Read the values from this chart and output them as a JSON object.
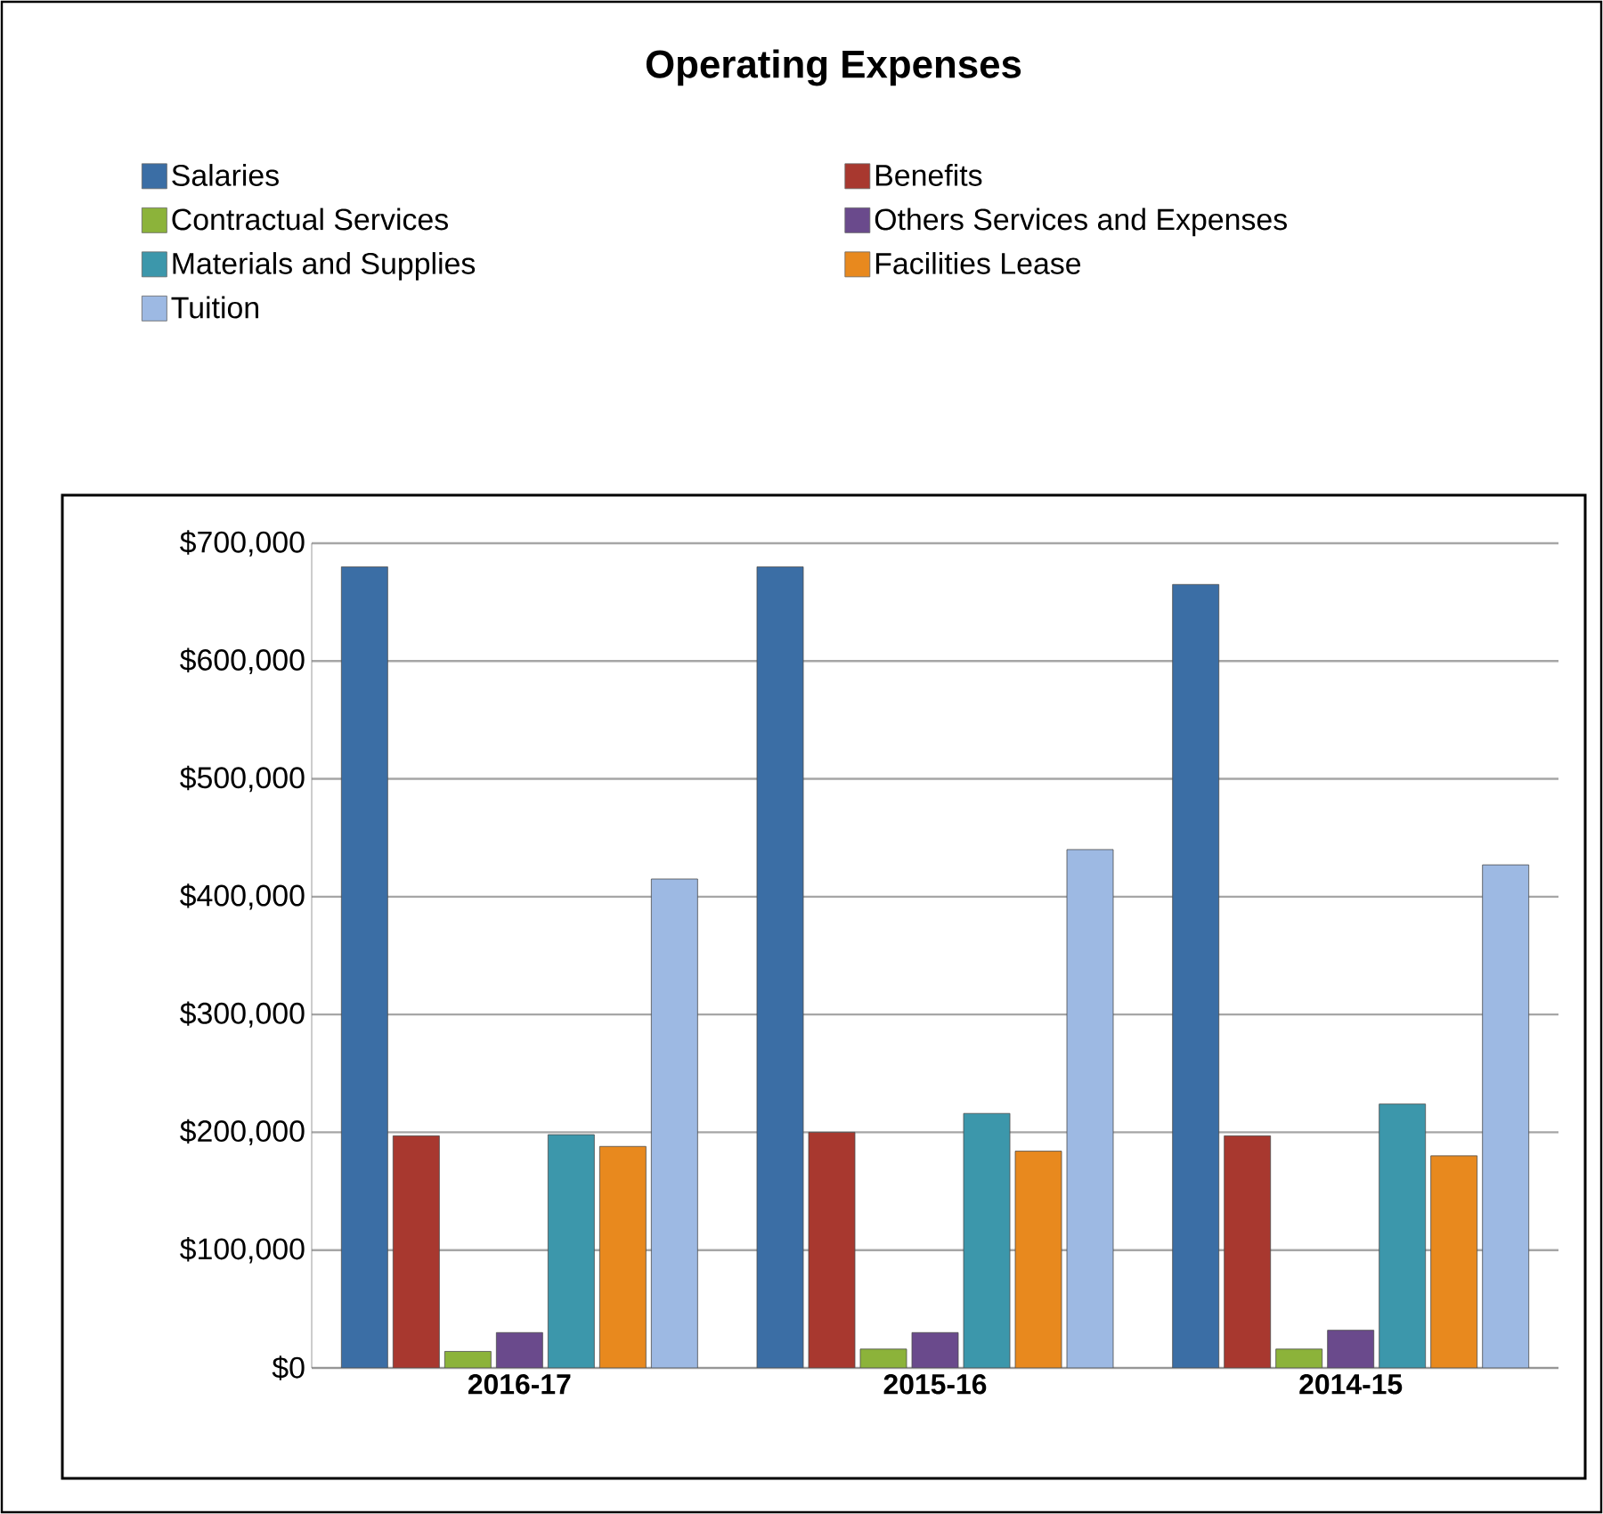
{
  "chart_data": {
    "type": "bar",
    "title": "Operating Expenses",
    "categories": [
      "2016-17",
      "2015-16",
      "2014-15"
    ],
    "series": [
      {
        "name": "Salaries",
        "color": "#3b6ea5",
        "values": [
          680000,
          680000,
          665000
        ]
      },
      {
        "name": "Benefits",
        "color": "#a8382f",
        "values": [
          197000,
          200000,
          197000
        ]
      },
      {
        "name": "Contractual Services",
        "color": "#8cb33a",
        "values": [
          14000,
          16000,
          16000
        ]
      },
      {
        "name": "Others Services and Expenses",
        "color": "#6a4a8c",
        "values": [
          30000,
          30000,
          32000
        ]
      },
      {
        "name": "Materials and Supplies",
        "color": "#3c97ab",
        "values": [
          198000,
          216000,
          224000
        ]
      },
      {
        "name": "Facilities Lease",
        "color": "#e8891e",
        "values": [
          188000,
          184000,
          180000
        ]
      },
      {
        "name": "Tuition",
        "color": "#9db9e3",
        "values": [
          415000,
          440000,
          427000
        ]
      }
    ],
    "ylim": [
      0,
      700000
    ],
    "yticks": [
      {
        "value": 0,
        "label": "$0"
      },
      {
        "value": 100000,
        "label": "$100,000"
      },
      {
        "value": 200000,
        "label": "$200,000"
      },
      {
        "value": 300000,
        "label": "$300,000"
      },
      {
        "value": 400000,
        "label": "$400,000"
      },
      {
        "value": 500000,
        "label": "$500,000"
      },
      {
        "value": 600000,
        "label": "$600,000"
      },
      {
        "value": 700000,
        "label": "$700,000"
      }
    ],
    "grid": "y",
    "legend": "top"
  }
}
